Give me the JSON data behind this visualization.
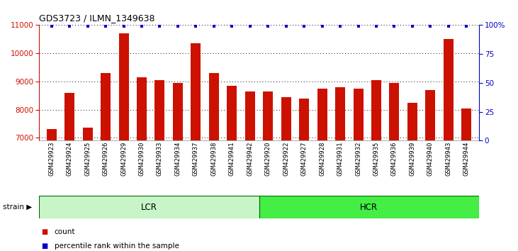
{
  "title": "GDS3723 / ILMN_1349638",
  "categories": [
    "GSM429923",
    "GSM429924",
    "GSM429925",
    "GSM429926",
    "GSM429929",
    "GSM429930",
    "GSM429933",
    "GSM429934",
    "GSM429937",
    "GSM429938",
    "GSM429941",
    "GSM429942",
    "GSM429920",
    "GSM429922",
    "GSM429927",
    "GSM429928",
    "GSM429931",
    "GSM429932",
    "GSM429935",
    "GSM429936",
    "GSM429939",
    "GSM429940",
    "GSM429943",
    "GSM429944"
  ],
  "values": [
    7300,
    8600,
    7350,
    9300,
    10700,
    9150,
    9050,
    8950,
    10350,
    9300,
    8850,
    8650,
    8650,
    8450,
    8400,
    8750,
    8800,
    8750,
    9050,
    8950,
    8250,
    8700,
    10500,
    8050
  ],
  "groups": [
    "LCR",
    "HCR"
  ],
  "group_sizes": [
    12,
    12
  ],
  "lcr_color": "#c8f5c8",
  "hcr_color": "#44ee44",
  "group_edge_color": "#006600",
  "bar_color": "#CC1100",
  "percentile_color": "#0000CC",
  "percentile_values": [
    99,
    99,
    99,
    99,
    99,
    99,
    99,
    99,
    99,
    99,
    99,
    99,
    99,
    99,
    99,
    99,
    99,
    99,
    99,
    99,
    99,
    99,
    99,
    99
  ],
  "ylim": [
    6900,
    11000
  ],
  "yticks": [
    7000,
    8000,
    9000,
    10000,
    11000
  ],
  "right_yticks": [
    0,
    25,
    50,
    75,
    100
  ],
  "right_ylim": [
    0,
    100
  ],
  "background_color": "#ffffff",
  "legend_count_label": "count",
  "legend_pct_label": "percentile rank within the sample"
}
